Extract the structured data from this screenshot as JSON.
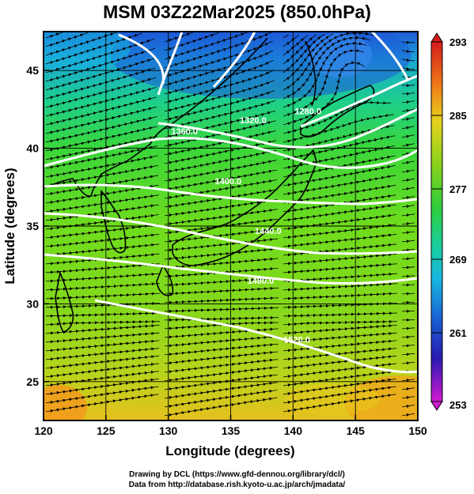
{
  "title": "MSM 03Z22Mar2025 (850.0hPa)",
  "map": {
    "xlabel": "Longitude (degrees)",
    "ylabel": "Latitude  (degrees)",
    "xlim": [
      120,
      150
    ],
    "ylim": [
      22.5,
      47.5
    ],
    "x_ticks": [
      "120",
      "125",
      "130",
      "135",
      "140",
      "145",
      "150"
    ],
    "y_ticks": [
      "25",
      "30",
      "35",
      "40",
      "45"
    ],
    "field": "temperature shading with streamlines",
    "colorbar": {
      "ticks": [
        "293",
        "285",
        "277",
        "269",
        "261",
        "253"
      ],
      "range": [
        253,
        293
      ]
    },
    "contours": [
      {
        "label": "1280.0",
        "lon": 141.2,
        "lat": 42.2
      },
      {
        "label": "1320.0",
        "lon": 136.8,
        "lat": 41.6
      },
      {
        "label": "1360.0",
        "lon": 131.3,
        "lat": 40.9
      },
      {
        "label": "1400.0",
        "lon": 134.8,
        "lat": 37.7
      },
      {
        "label": "1440.0",
        "lon": 138.0,
        "lat": 34.5
      },
      {
        "label": "1480.0",
        "lon": 137.4,
        "lat": 31.3
      },
      {
        "label": "1520.0",
        "lon": 140.3,
        "lat": 27.5
      }
    ]
  },
  "credits": {
    "line1": "Drawing by DCL (https://www.gfd-dennou.org/library/dcl/)",
    "line2": "Data from http://database.rish.kyoto-u.ac.jp/arch/jmadata/"
  }
}
